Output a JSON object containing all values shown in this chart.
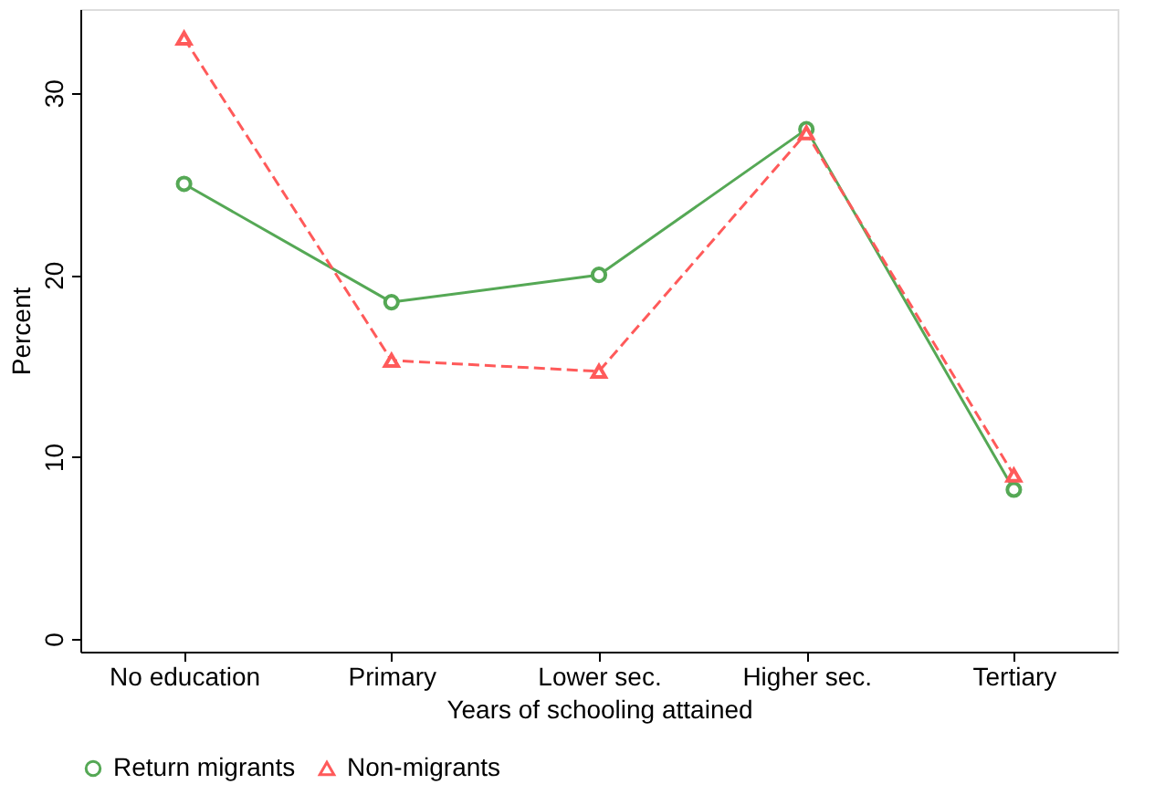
{
  "chart_data": {
    "type": "line",
    "xlabel": "Years of schooling attained",
    "ylabel": "Percent",
    "categories": [
      "No education",
      "Primary",
      "Lower sec.",
      "Higher sec.",
      "Tertiary"
    ],
    "series": [
      {
        "name": "Return migrants",
        "color": "#55a855",
        "values": [
          25,
          18.5,
          20,
          28,
          8.2
        ],
        "marker": "circle",
        "line_style": "solid"
      },
      {
        "name": "Non-migrants",
        "color": "#ff5a5a",
        "values": [
          33,
          15.3,
          14.7,
          27.8,
          9
        ],
        "marker": "triangle",
        "line_style": "dashed"
      }
    ],
    "ylim": [
      -0.7,
      34.6
    ],
    "yticks": [
      0,
      10,
      20,
      30
    ],
    "grid": false,
    "legend": "bottom"
  }
}
